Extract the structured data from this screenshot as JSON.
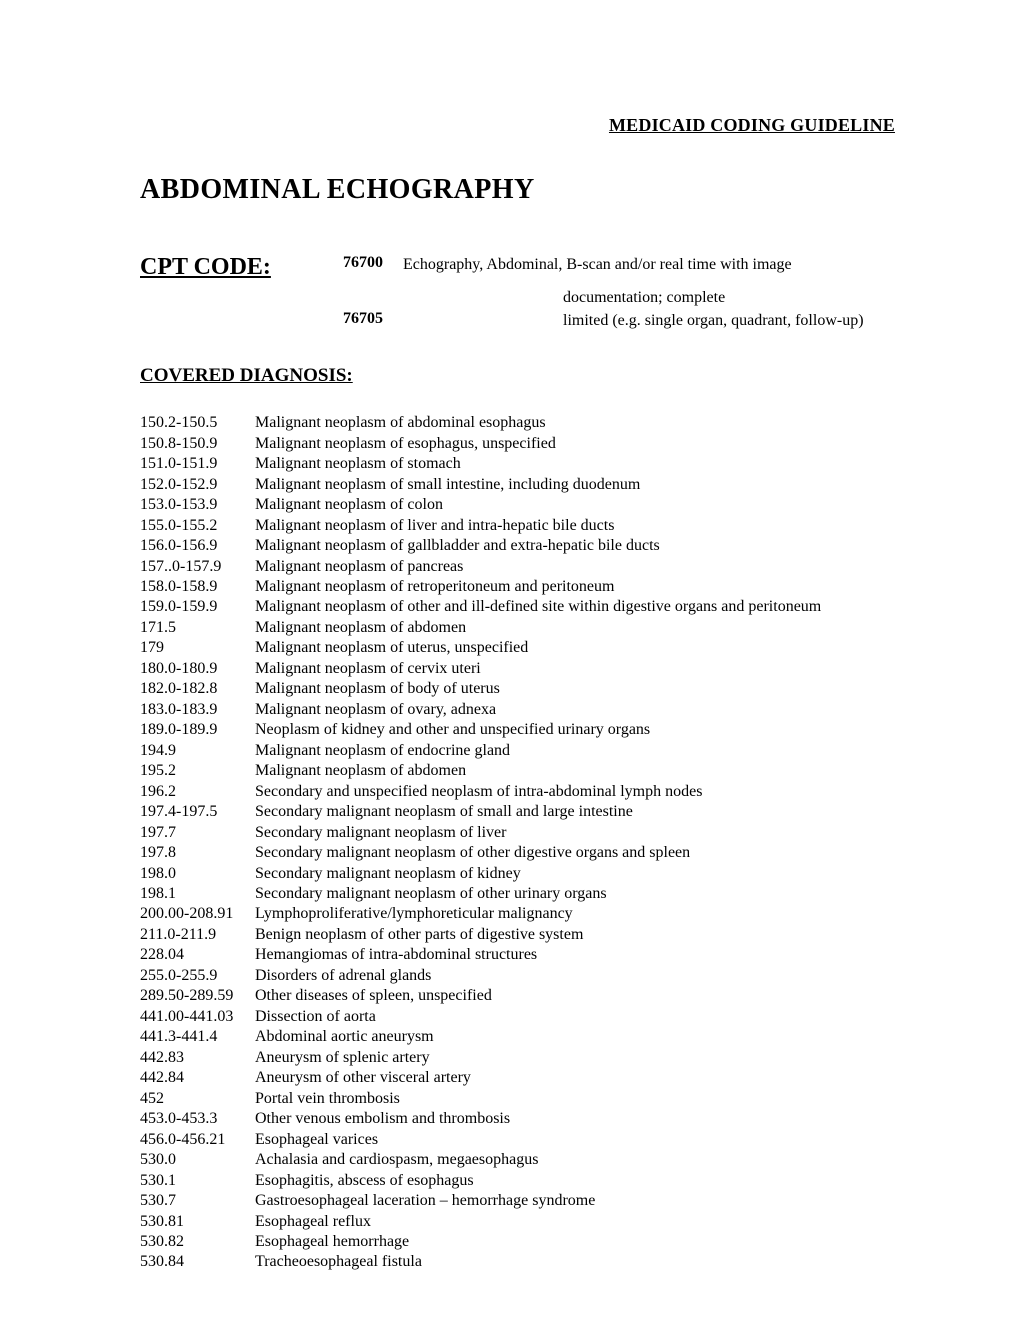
{
  "header": "MEDICAID CODING GUIDELINE",
  "title": "ABDOMINAL ECHOGRAPHY",
  "cpt": {
    "label": "CPT CODE:",
    "rows": [
      {
        "code": "76700",
        "desc": "Echography, Abdominal, B-scan and/or real time with image"
      },
      {
        "code": "",
        "desc_indent": true,
        "desc": "documentation; complete"
      },
      {
        "code": "76705",
        "desc_indent": true,
        "desc": "limited (e.g. single organ, quadrant, follow-up)"
      }
    ]
  },
  "diagnosis": {
    "heading": "COVERED DIAGNOSIS:",
    "rows": [
      {
        "code": "150.2-150.5",
        "desc": "Malignant neoplasm of abdominal esophagus"
      },
      {
        "code": "150.8-150.9",
        "desc": "Malignant neoplasm of esophagus, unspecified"
      },
      {
        "code": "151.0-151.9",
        "desc": "Malignant neoplasm of stomach"
      },
      {
        "code": "152.0-152.9",
        "desc": "Malignant neoplasm of small intestine, including duodenum"
      },
      {
        "code": "153.0-153.9",
        "desc": "Malignant neoplasm of colon"
      },
      {
        "code": "155.0-155.2",
        "desc": "Malignant neoplasm of liver and intra-hepatic bile ducts"
      },
      {
        "code": "156.0-156.9",
        "desc": "Malignant neoplasm of gallbladder and extra-hepatic bile ducts"
      },
      {
        "code": "157..0-157.9",
        "desc": "Malignant neoplasm of pancreas"
      },
      {
        "code": "158.0-158.9",
        "desc": "Malignant neoplasm of retroperitoneum and peritoneum"
      },
      {
        "code": "159.0-159.9",
        "desc": "Malignant neoplasm of other and ill-defined site within digestive organs and peritoneum"
      },
      {
        "code": "171.5",
        "desc": "Malignant neoplasm of abdomen"
      },
      {
        "code": "179",
        "desc": "Malignant neoplasm of uterus, unspecified"
      },
      {
        "code": "180.0-180.9",
        "desc": "Malignant neoplasm of cervix uteri"
      },
      {
        "code": "182.0-182.8",
        "desc": "Malignant neoplasm of body of uterus"
      },
      {
        "code": "183.0-183.9",
        "desc": "Malignant neoplasm of ovary, adnexa"
      },
      {
        "code": "189.0-189.9",
        "desc": "Neoplasm of kidney and other and unspecified urinary organs"
      },
      {
        "code": "194.9",
        "desc": "Malignant neoplasm of endocrine gland"
      },
      {
        "code": "195.2",
        "desc": "Malignant neoplasm of abdomen"
      },
      {
        "code": "196.2",
        "desc": "Secondary and unspecified neoplasm of intra-abdominal lymph nodes"
      },
      {
        "code": "197.4-197.5",
        "desc": "Secondary malignant neoplasm of small and large intestine"
      },
      {
        "code": "197.7",
        "desc": "Secondary malignant neoplasm of liver"
      },
      {
        "code": "197.8",
        "desc": "Secondary malignant neoplasm of other digestive organs and spleen"
      },
      {
        "code": "198.0",
        "desc": "Secondary malignant neoplasm of kidney"
      },
      {
        "code": "198.1",
        "desc": "Secondary malignant neoplasm of other urinary organs"
      },
      {
        "code": "200.00-208.91",
        "desc": "Lymphoproliferative/lymphoreticular malignancy"
      },
      {
        "code": "211.0-211.9",
        "desc": "Benign neoplasm of other parts of digestive system"
      },
      {
        "code": "228.04",
        "desc": "Hemangiomas of intra-abdominal structures"
      },
      {
        "code": "255.0-255.9",
        "desc": "Disorders of adrenal glands"
      },
      {
        "code": "289.50-289.59",
        "desc": "Other diseases of spleen, unspecified"
      },
      {
        "code": "441.00-441.03",
        "desc": "Dissection of aorta"
      },
      {
        "code": "441.3-441.4",
        "desc": "Abdominal aortic aneurysm"
      },
      {
        "code": "442.83",
        "desc": "Aneurysm of splenic artery"
      },
      {
        "code": "442.84",
        "desc": "Aneurysm of other visceral artery"
      },
      {
        "code": "452",
        "desc": "Portal vein thrombosis"
      },
      {
        "code": "453.0-453.3",
        "desc": "Other venous embolism and thrombosis"
      },
      {
        "code": "456.0-456.21",
        "desc": "Esophageal varices"
      },
      {
        "code": "530.0",
        "desc": "Achalasia and cardiospasm, megaesophagus"
      },
      {
        "code": "530.1",
        "desc": "Esophagitis, abscess of esophagus"
      },
      {
        "code": "530.7",
        "desc": "Gastroesophageal laceration – hemorrhage syndrome"
      },
      {
        "code": "530.81",
        "desc": "Esophageal reflux"
      },
      {
        "code": "530.82",
        "desc": "Esophageal hemorrhage"
      },
      {
        "code": "530.84",
        "desc": "Tracheoesophageal fistula"
      }
    ]
  },
  "style": {
    "page_bg": "#ffffff",
    "text_color": "#000000",
    "font_family": "Times New Roman",
    "header_fontsize": 18,
    "title_fontsize": 28,
    "cpt_label_fontsize": 24,
    "section_heading_fontsize": 19,
    "body_fontsize": 16,
    "code_col_width": 115,
    "cpt_label_col_width": 203,
    "cpt_code_col_width": 60
  }
}
